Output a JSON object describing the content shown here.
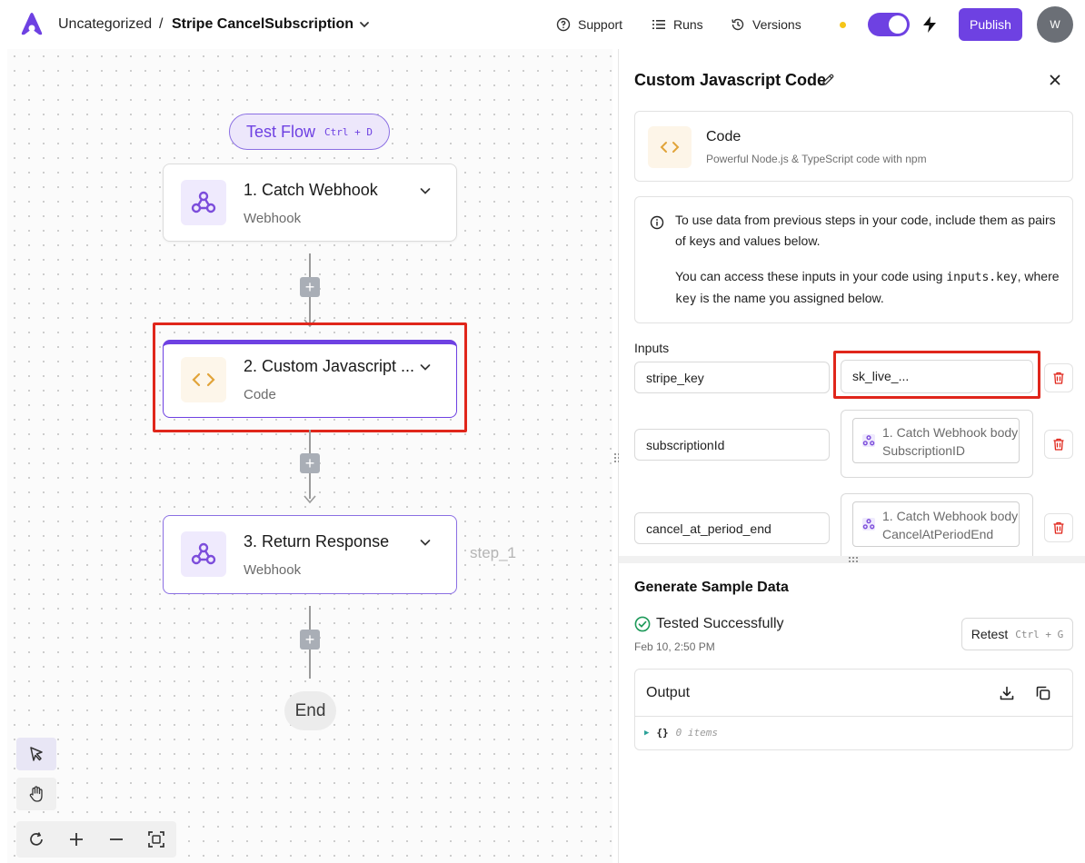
{
  "header": {
    "folder": "Uncategorized",
    "separator": "/",
    "flow_name": "Stripe CancelSubscription",
    "support_label": "Support",
    "runs_label": "Runs",
    "versions_label": "Versions",
    "publish_label": "Publish",
    "avatar_initial": "W",
    "brand_color": "#6e41e2",
    "status_dot_color": "#f5c518",
    "toggle_on": true
  },
  "canvas": {
    "test_flow_label": "Test Flow",
    "test_flow_shortcut": "Ctrl + D",
    "steps": [
      {
        "title": "1. Catch Webhook",
        "subtitle": "Webhook",
        "icon": "webhook-icon"
      },
      {
        "title": "2. Custom Javascript ...",
        "subtitle": "Code",
        "icon": "code-icon",
        "selected": true
      },
      {
        "title": "3. Return Response",
        "subtitle": "Webhook",
        "icon": "webhook-icon"
      }
    ],
    "step_tag": "step_1",
    "end_label": "End"
  },
  "panel": {
    "title": "Custom Javascript Code",
    "piece_name": "Code",
    "piece_description": "Powerful Node.js & TypeScript code with npm",
    "info_line1": "To use data from previous steps in your code, include them as pairs of keys and values below.",
    "info_line2_a": "You can access these inputs in your code using ",
    "info_line2_code1": "inputs.key",
    "info_line2_b": ", where ",
    "info_line2_code2": "key",
    "info_line2_c": " is the name you assigned below.",
    "inputs_label": "Inputs",
    "inputs": [
      {
        "key": "stripe_key",
        "value": "sk_live_..."
      },
      {
        "key": "subscriptionId",
        "value": "1. Catch Webhook body SubscriptionID"
      },
      {
        "key": "cancel_at_period_end",
        "value": "1. Catch Webhook body CancelAtPeriodEnd"
      }
    ]
  },
  "sample": {
    "title": "Generate Sample Data",
    "status": "Tested Successfully",
    "date": "Feb 10, 2:50 PM",
    "retest_label": "Retest",
    "retest_shortcut": "Ctrl + G",
    "output_title": "Output",
    "json_brace": "{}",
    "json_count": "0 items"
  }
}
